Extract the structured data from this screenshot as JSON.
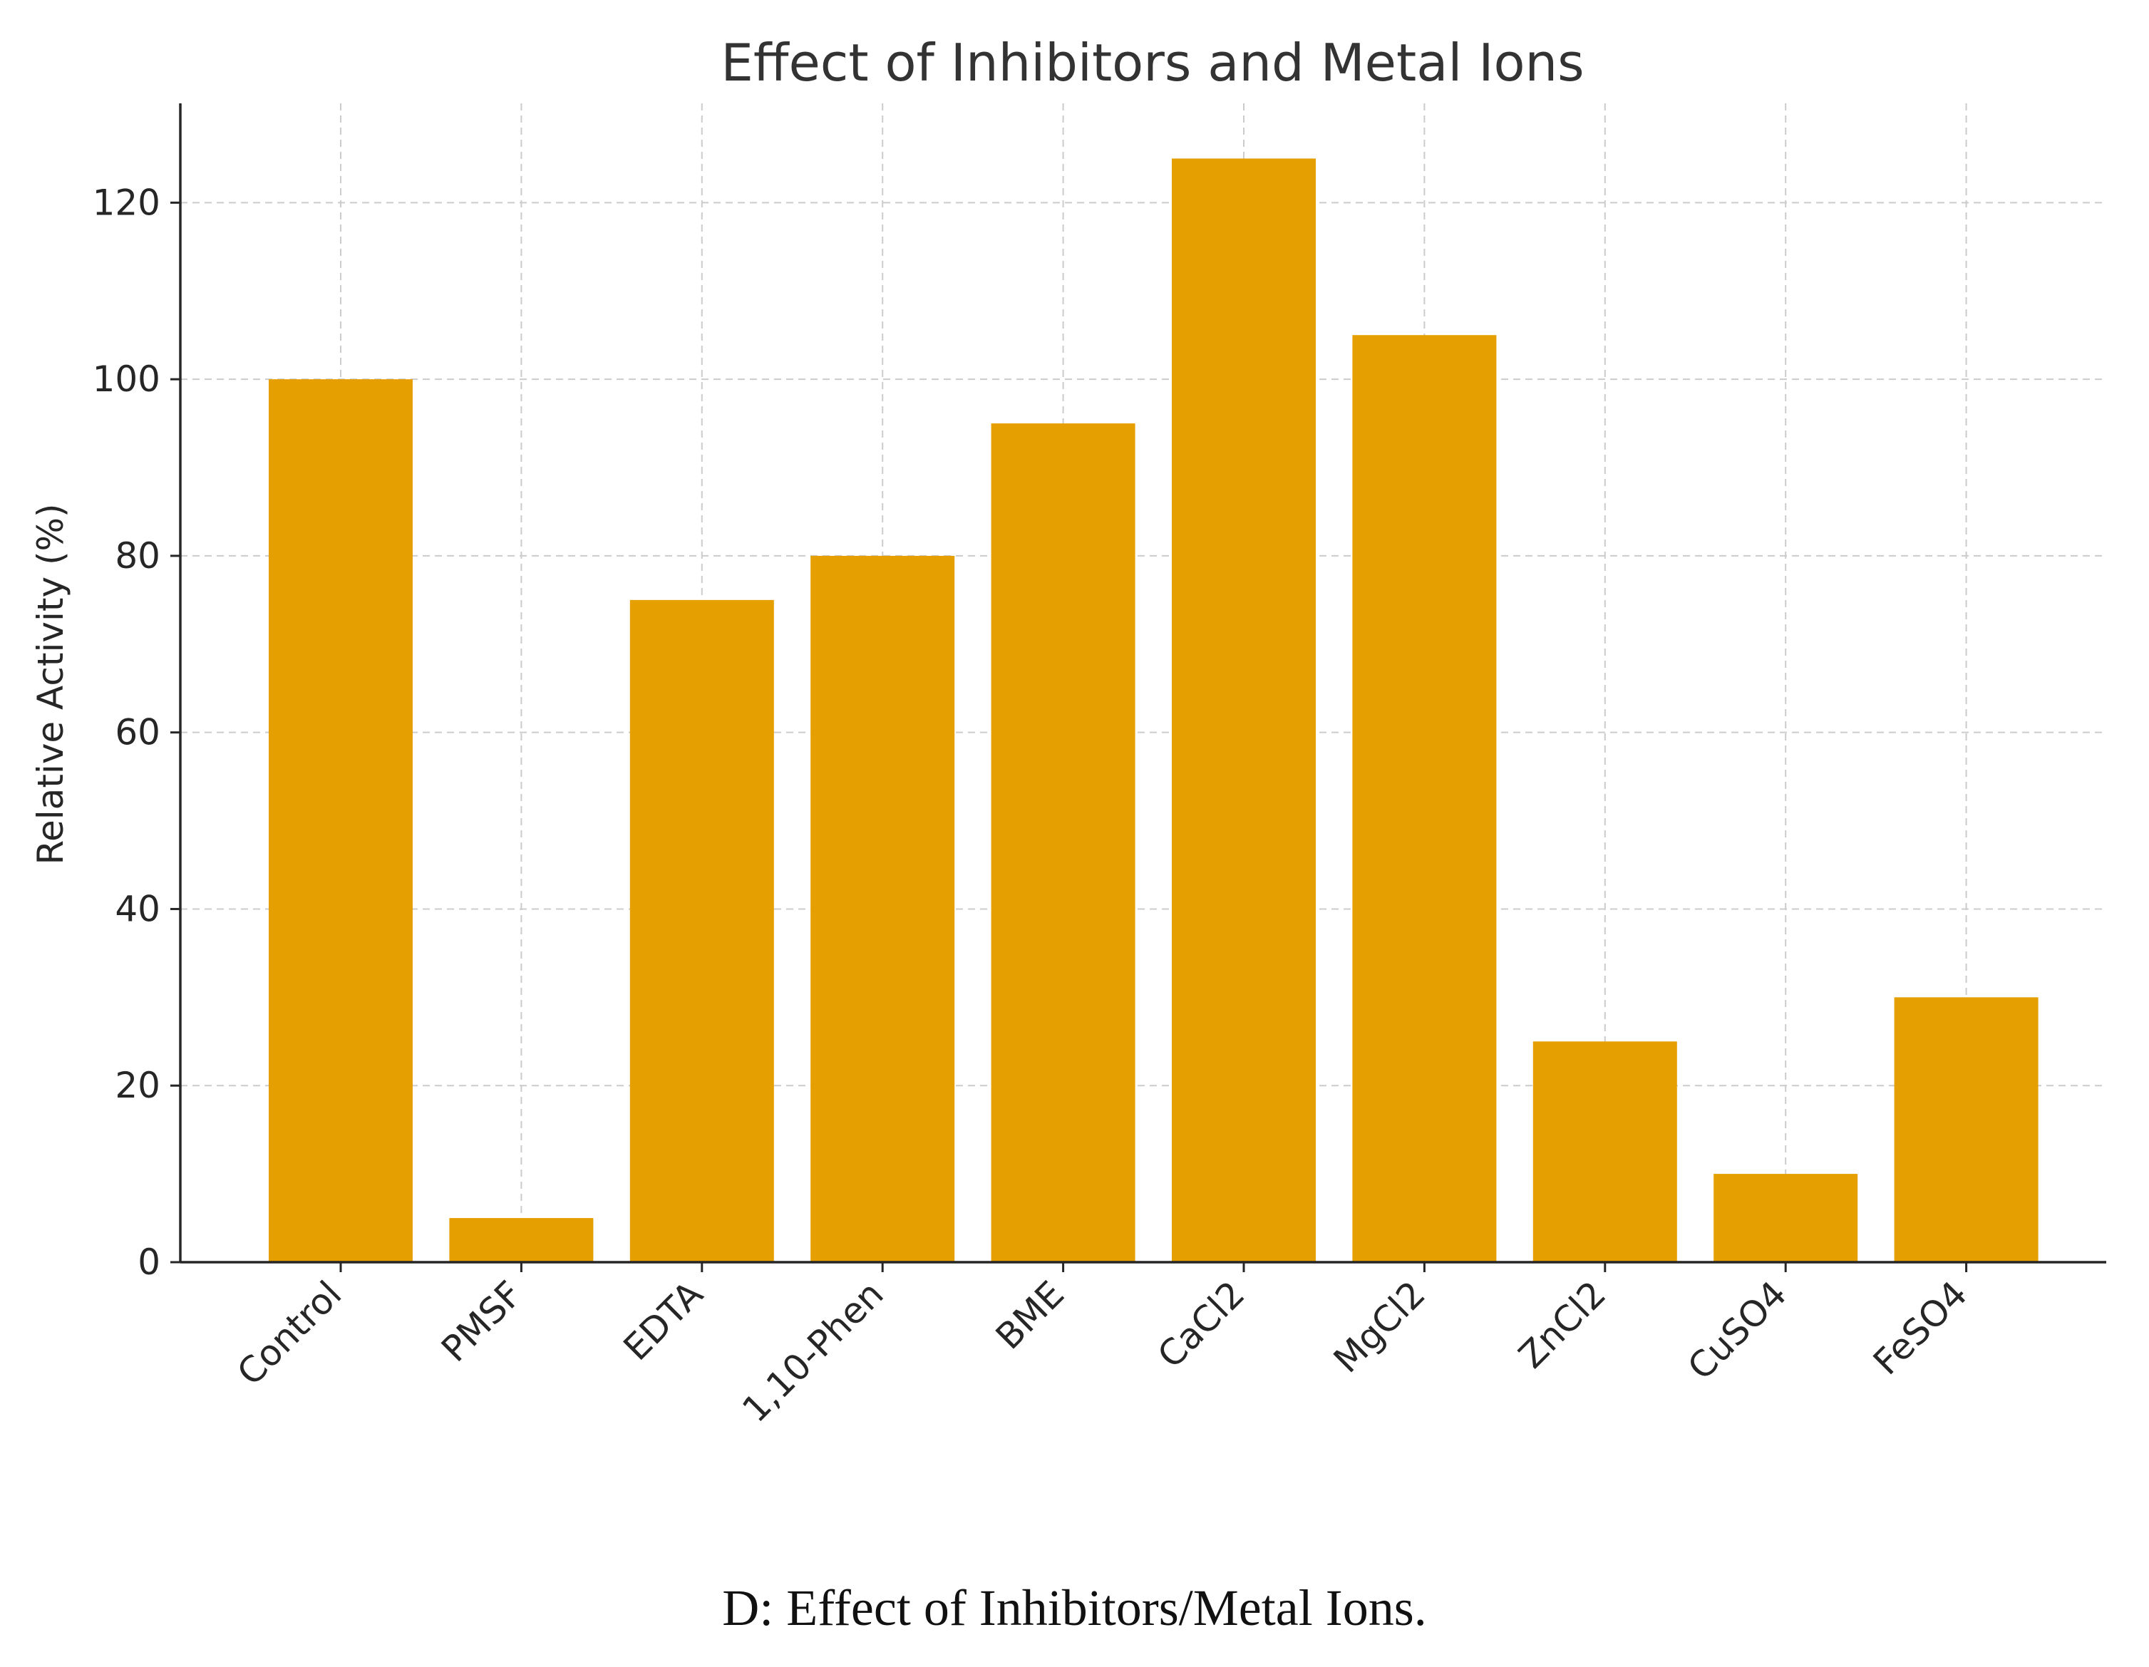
{
  "chart_data": {
    "type": "bar",
    "title": "Effect of Inhibitors and Metal Ions",
    "xlabel": "",
    "ylabel": "Relative Activity (%)",
    "categories": [
      "Control",
      "PMSF",
      "EDTA",
      "1,10-Phen",
      "BME",
      "CaCl2",
      "MgCl2",
      "ZnCl2",
      "CuSO4",
      "FeSO4"
    ],
    "values": [
      100,
      5,
      75,
      80,
      95,
      125,
      105,
      25,
      10,
      30
    ],
    "ylim": [
      0,
      131.25
    ],
    "yticks": [
      0,
      20,
      40,
      60,
      80,
      100,
      120
    ],
    "grid": true,
    "legend": "none",
    "colors": {
      "bar": "#E69F00",
      "text": "#262626",
      "axis": "#262626",
      "grid": "#cccccc"
    }
  },
  "caption": "D: Effect of Inhibitors/Metal Ions."
}
